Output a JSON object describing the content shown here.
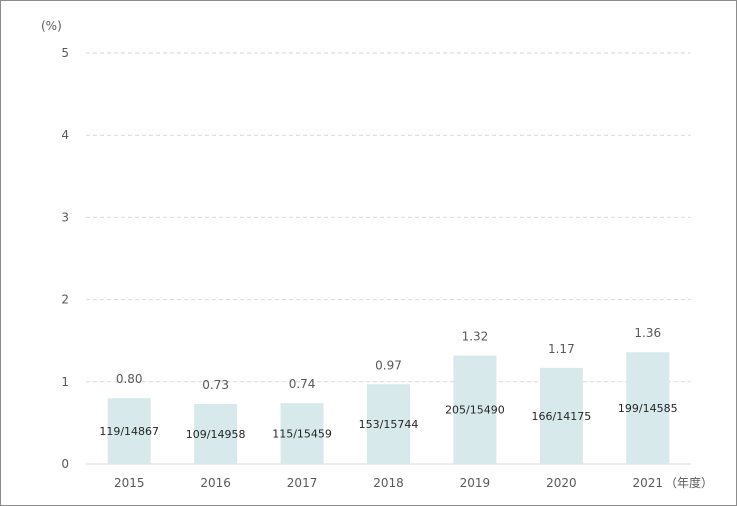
{
  "chart_data": {
    "type": "bar",
    "y_unit": "(%)",
    "x_unit": "（年度）",
    "categories": [
      "2015",
      "2016",
      "2017",
      "2018",
      "2019",
      "2020",
      "2021"
    ],
    "values": [
      0.8,
      0.73,
      0.74,
      0.97,
      1.32,
      1.17,
      1.36
    ],
    "value_labels": [
      "0.80",
      "0.73",
      "0.74",
      "0.97",
      "1.32",
      "1.17",
      "1.36"
    ],
    "ratio_labels": [
      "119/14867",
      "109/14958",
      "115/15459",
      "153/15744",
      "205/15490",
      "166/14175",
      "199/14585"
    ],
    "ylim": [
      0,
      5
    ],
    "yticks": [
      0,
      1,
      2,
      3,
      4,
      5
    ],
    "grid": true,
    "bar_color": "#d7e9ea"
  }
}
